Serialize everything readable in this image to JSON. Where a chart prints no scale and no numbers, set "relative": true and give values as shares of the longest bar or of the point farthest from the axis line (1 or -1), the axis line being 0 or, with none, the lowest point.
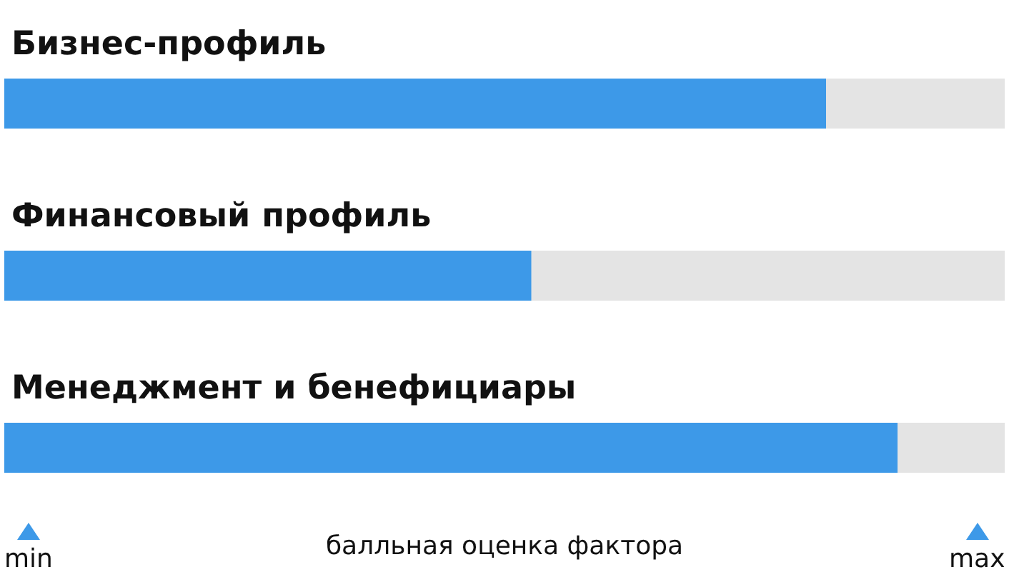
{
  "chart_data": {
    "type": "bar",
    "orientation": "horizontal",
    "relative": true,
    "categories": [
      "Бизнес-профиль",
      "Финансовый профиль",
      "Менеджмент и бенефициары"
    ],
    "values": [
      0.92,
      0.59,
      1
    ],
    "color": "#3d99e8",
    "xlabel": "балльная оценка фактора",
    "annotations": [
      "min",
      "max"
    ]
  }
}
